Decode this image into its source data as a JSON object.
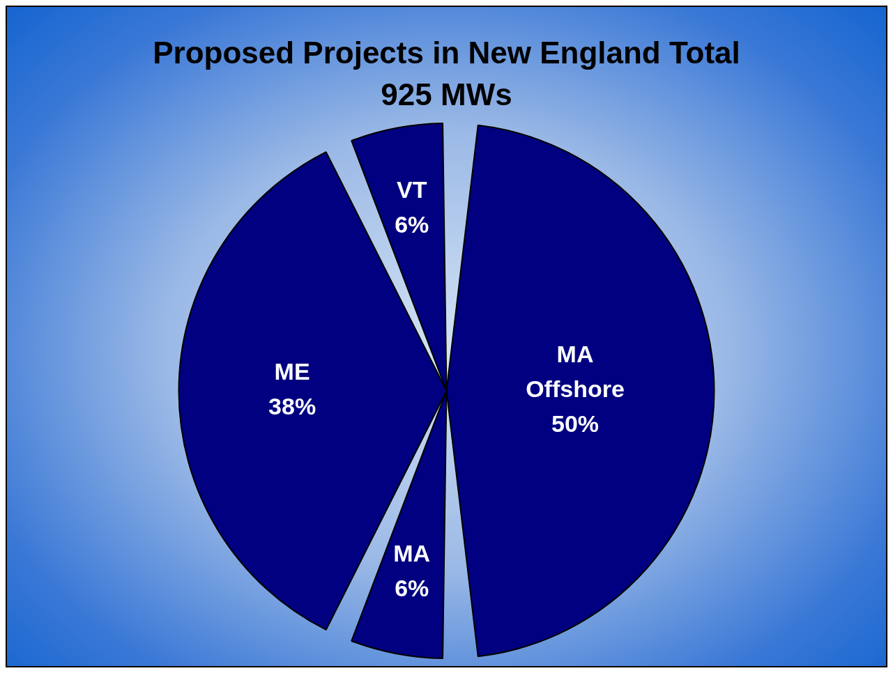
{
  "chart_data": {
    "type": "pie",
    "title": "Proposed Projects in New England Total 925 MWs",
    "categories": [
      "MA Offshore",
      "MA",
      "ME",
      "VT"
    ],
    "values": [
      50,
      6,
      38,
      6
    ],
    "value_labels": [
      "50%",
      "6%",
      "38%",
      "6%"
    ],
    "colors": [
      "#000080",
      "#000080",
      "#000080",
      "#000080"
    ],
    "legend": false
  }
}
